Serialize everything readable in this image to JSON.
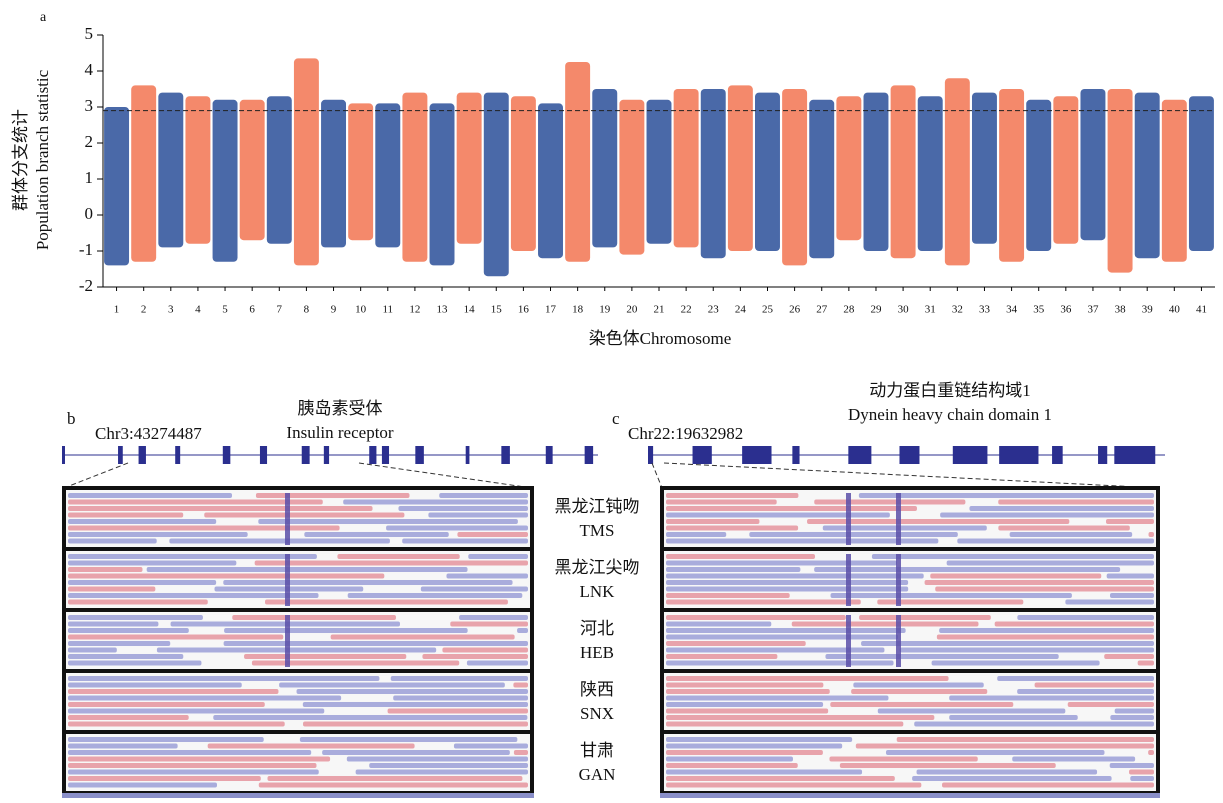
{
  "chart_data": {
    "type": "manhattan",
    "panel_label": "a",
    "ylabel": [
      "群体分支统计",
      "Population branch statistic"
    ],
    "xlabel": "染色体Chromosome",
    "categories": [
      "1",
      "2",
      "3",
      "4",
      "5",
      "6",
      "7",
      "8",
      "9",
      "10",
      "11",
      "12",
      "13",
      "14",
      "15",
      "16",
      "17",
      "18",
      "19",
      "20",
      "21",
      "22",
      "23",
      "24",
      "25",
      "26",
      "27",
      "28",
      "29",
      "30",
      "31",
      "32",
      "33",
      "34",
      "35",
      "36",
      "37",
      "38",
      "39",
      "40",
      "41"
    ],
    "max": [
      3.0,
      3.6,
      3.4,
      3.3,
      3.2,
      3.2,
      3.3,
      4.35,
      3.2,
      3.1,
      3.1,
      3.4,
      3.1,
      3.4,
      3.4,
      3.3,
      3.1,
      4.25,
      3.5,
      3.2,
      3.2,
      3.5,
      3.5,
      3.6,
      3.4,
      3.5,
      3.2,
      3.3,
      3.4,
      3.6,
      3.3,
      3.8,
      3.4,
      3.5,
      3.2,
      3.3,
      3.5,
      3.5,
      3.4,
      3.2,
      3.3
    ],
    "min": [
      -1.4,
      -1.3,
      -0.9,
      -0.8,
      -1.3,
      -0.7,
      -0.8,
      -1.4,
      -0.9,
      -0.7,
      -0.9,
      -1.3,
      -1.4,
      -0.8,
      -1.7,
      -1.0,
      -1.2,
      -1.3,
      -0.9,
      -1.1,
      -0.8,
      -0.9,
      -1.2,
      -1.0,
      -1.0,
      -1.4,
      -1.2,
      -0.7,
      -1.0,
      -1.2,
      -1.0,
      -1.4,
      -0.8,
      -1.3,
      -1.0,
      -0.8,
      -0.7,
      -1.6,
      -1.2,
      -1.3,
      -1.0
    ],
    "colors": [
      "#4a69a8",
      "#f4896b"
    ],
    "threshold": 2.9,
    "ylim": [
      -2,
      5
    ],
    "yticks": [
      -2,
      -1,
      0,
      1,
      2,
      3,
      4,
      5
    ]
  },
  "panels": [
    {
      "label": "b",
      "title_cn": "胰岛素受体",
      "title_en": "Insulin receptor",
      "locus": "Chr3:43274487"
    },
    {
      "label": "c",
      "title_cn": "动力蛋白重链结构域1",
      "title_en": "Dynein heavy chain domain 1",
      "locus": "Chr22:19632982"
    }
  ],
  "populations": [
    {
      "cn": "黑龙江钝吻",
      "en": "TMS"
    },
    {
      "cn": "黑龙江尖吻",
      "en": "LNK"
    },
    {
      "cn": "河北",
      "en": "HEB"
    },
    {
      "cn": "陕西",
      "en": "SNX"
    },
    {
      "cn": "甘肃",
      "en": "GAN"
    }
  ]
}
